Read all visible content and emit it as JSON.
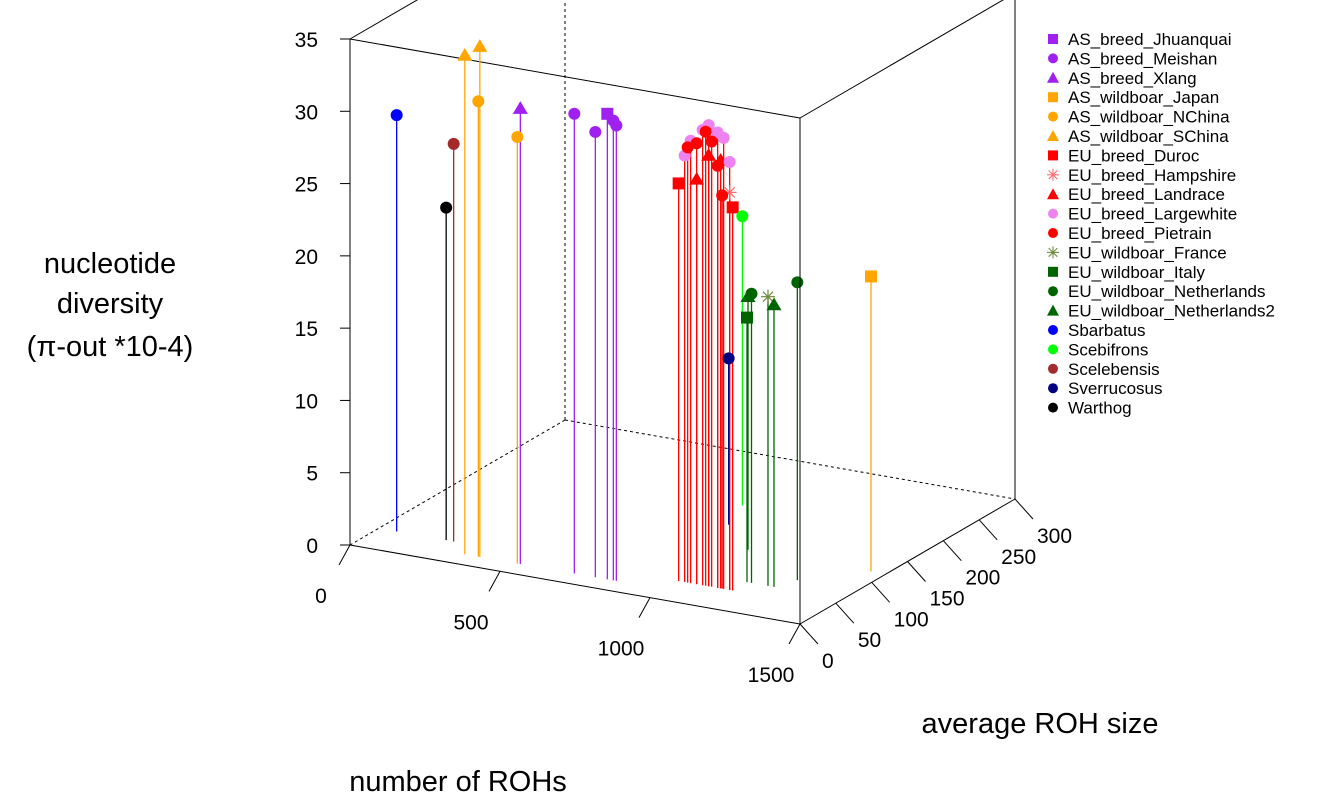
{
  "chart_data": {
    "type": "scatter",
    "subtype": "3d-stem",
    "title": "",
    "xlabel": "number of ROHs",
    "ylabel": "average ROH size",
    "zlabel_lines": [
      "nucleotide",
      "diversity",
      "(π-out *10-4)"
    ],
    "xlim": [
      0,
      1500
    ],
    "ylim": [
      0,
      300
    ],
    "zlim": [
      0,
      35
    ],
    "x_ticks": [
      "0",
      "500",
      "1000",
      "1500"
    ],
    "y_ticks": [
      "0",
      "50",
      "100",
      "150",
      "200",
      "250",
      "300"
    ],
    "z_ticks": [
      "0",
      "5",
      "10",
      "15",
      "20",
      "25",
      "30",
      "35"
    ],
    "grid": false,
    "legend_position": "right",
    "series": [
      {
        "name": "AS_breed_Jhuanquai",
        "color": "#A020F0",
        "stem_color": "#A020F0",
        "shape": "square",
        "points": [
          [
            810,
            20,
            32.2
          ]
        ]
      },
      {
        "name": "AS_breed_Meishan",
        "color": "#A020F0",
        "stem_color": "#A020F0",
        "shape": "circle",
        "points": [
          [
            700,
            20,
            31.8
          ],
          [
            770,
            20,
            30.8
          ],
          [
            840,
            20,
            31.5
          ],
          [
            830,
            20,
            31.8
          ]
        ]
      },
      {
        "name": "AS_breed_Xlang",
        "color": "#A020F0",
        "stem_color": "#A020F0",
        "shape": "triangle",
        "points": [
          [
            520,
            20,
            31.5
          ]
        ]
      },
      {
        "name": "AS_wildboar_Japan",
        "color": "#FFA500",
        "stem_color": "#FFA500",
        "shape": "square",
        "points": [
          [
            1450,
            120,
            20.4
          ]
        ]
      },
      {
        "name": "AS_wildboar_NChina",
        "color": "#FFA500",
        "stem_color": "#FFA500",
        "shape": "circle",
        "points": [
          [
            380,
            20,
            31.5
          ],
          [
            510,
            20,
            29.5
          ]
        ]
      },
      {
        "name": "AS_wildboar_SChina",
        "color": "#FFA500",
        "stem_color": "#FFA500",
        "shape": "triangle",
        "points": [
          [
            335,
            20,
            34.5
          ],
          [
            385,
            20,
            35.3
          ]
        ]
      },
      {
        "name": "EU_breed_Duroc",
        "color": "#FF0000",
        "stem_color": "#FF0000",
        "shape": "square",
        "points": [
          [
            1000,
            40,
            27.5
          ],
          [
            1180,
            40,
            26.5
          ]
        ]
      },
      {
        "name": "EU_breed_Hampshire",
        "color": "#FF6A6A",
        "stem_color": "#FF0000",
        "shape": "asterisk",
        "points": [
          [
            1170,
            40,
            27.5
          ]
        ]
      },
      {
        "name": "EU_breed_Landrace",
        "color": "#FF0000",
        "stem_color": "#FF0000",
        "shape": "triangle",
        "points": [
          [
            1060,
            40,
            28.0
          ],
          [
            1100,
            40,
            29.8
          ],
          [
            1140,
            40,
            29.6
          ]
        ]
      },
      {
        "name": "EU_breed_Largewhite",
        "color": "#EE82EE",
        "stem_color": "#FF0000",
        "shape": "circle",
        "points": [
          [
            1020,
            40,
            29.5
          ],
          [
            1040,
            40,
            30.6
          ],
          [
            1080,
            40,
            31.5
          ],
          [
            1100,
            40,
            31.9
          ],
          [
            1130,
            40,
            31.5
          ],
          [
            1150,
            40,
            31.2
          ],
          [
            1170,
            40,
            29.6
          ]
        ]
      },
      {
        "name": "EU_breed_Pietrain",
        "color": "#FF0000",
        "stem_color": "#FF0000",
        "shape": "circle",
        "points": [
          [
            1030,
            40,
            30.1
          ],
          [
            1060,
            40,
            30.5
          ],
          [
            1090,
            40,
            31.4
          ],
          [
            1110,
            40,
            30.8
          ],
          [
            1130,
            40,
            29.2
          ],
          [
            1145,
            40,
            27.2
          ]
        ]
      },
      {
        "name": "EU_wildboar_France",
        "color": "#6E8B3D",
        "stem_color": "#006400",
        "shape": "asterisk",
        "points": [
          [
            1250,
            60,
            20.0
          ]
        ]
      },
      {
        "name": "EU_wildboar_Italy",
        "color": "#006400",
        "stem_color": "#006400",
        "shape": "square",
        "points": [
          [
            1180,
            60,
            18.3
          ]
        ]
      },
      {
        "name": "EU_wildboar_Netherlands",
        "color": "#006400",
        "stem_color": "#006400",
        "shape": "circle",
        "points": [
          [
            1195,
            60,
            20.0
          ],
          [
            1300,
            80,
            20.6
          ]
        ]
      },
      {
        "name": "EU_wildboar_Netherlands2",
        "color": "#006400",
        "stem_color": "#006400",
        "shape": "triangle",
        "points": [
          [
            1040,
            120,
            17.5
          ],
          [
            1270,
            60,
            19.5
          ]
        ]
      },
      {
        "name": "Sbarbatus",
        "color": "#0000FF",
        "stem_color": "#0000FF",
        "shape": "circle",
        "points": [
          [
            60,
            40,
            28.8
          ]
        ]
      },
      {
        "name": "Scebifrons",
        "color": "#00FF00",
        "stem_color": "#00FF00",
        "shape": "circle",
        "points": [
          [
            830,
            200,
            20.0
          ]
        ]
      },
      {
        "name": "Scelebensis",
        "color": "#A52A2A",
        "stem_color": "#A52A2A",
        "shape": "circle",
        "points": [
          [
            250,
            40,
            27.5
          ]
        ]
      },
      {
        "name": "Sverrucosus",
        "color": "#000080",
        "stem_color": "#000080",
        "shape": "circle",
        "points": [
          [
            880,
            160,
            11.5
          ]
        ]
      },
      {
        "name": "Warthog",
        "color": "#000000",
        "stem_color": "#000000",
        "shape": "circle",
        "points": [
          [
            225,
            40,
            23.0
          ]
        ]
      }
    ]
  }
}
